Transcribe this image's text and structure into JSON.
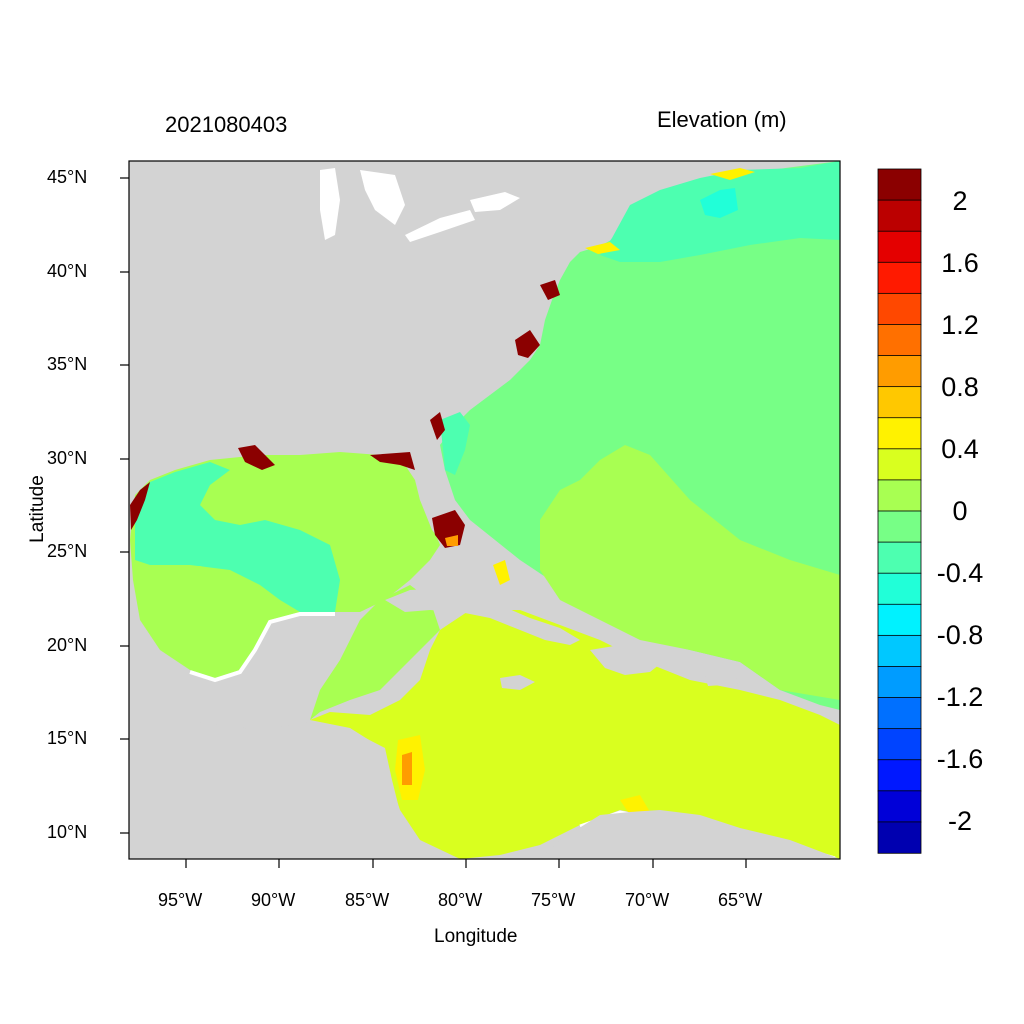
{
  "title_left": "2021080403",
  "title_right": "Elevation (m)",
  "x_axis": {
    "label": "Longitude",
    "ticks": [
      "95°W",
      "90°W",
      "85°W",
      "80°W",
      "75°W",
      "70°W",
      "65°W"
    ]
  },
  "y_axis": {
    "label": "Latitude",
    "ticks": [
      "45°N",
      "40°N",
      "35°N",
      "30°N",
      "25°N",
      "20°N",
      "15°N",
      "10°N"
    ]
  },
  "colorbar": {
    "labels": [
      "2",
      "1.6",
      "1.2",
      "0.8",
      "0.4",
      "0",
      "-0.4",
      "-0.8",
      "-1.2",
      "-1.6",
      "-2"
    ],
    "colors": [
      "#8b0000",
      "#bb0000",
      "#e40000",
      "#ff1a00",
      "#ff4800",
      "#ff7000",
      "#ff9c00",
      "#ffc800",
      "#fff200",
      "#d9ff1f",
      "#a8ff52",
      "#77ff86",
      "#4dffb0",
      "#21ffd8",
      "#00f2ff",
      "#00c8ff",
      "#009cff",
      "#0070ff",
      "#0044ff",
      "#0018ff",
      "#0000d8",
      "#0000b0"
    ]
  },
  "colors": {
    "land": "#d3d3d3",
    "water_white": "#ffffff",
    "gulf": "#a8ff52",
    "atlantic": "#77ff86",
    "caribbean": "#d9ff1f",
    "gulf_west": "#4dffb0",
    "maine": "#21ffd8",
    "high": "#8b0000"
  }
}
